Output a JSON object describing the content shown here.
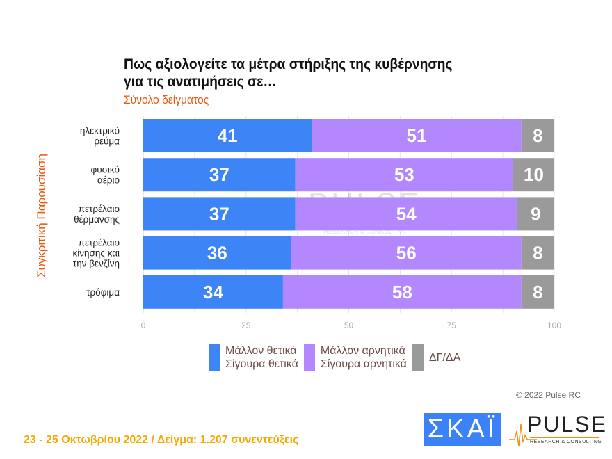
{
  "chart_data": {
    "type": "bar",
    "stacked": true,
    "orientation": "horizontal",
    "title": "Πως αξιολογείτε τα μέτρα στήριξης της κυβέρνησης για τις ανατιμήσεις σε…",
    "title_lines": [
      "Πως αξιολογείτε τα μέτρα στήριξης της κυβέρνησης",
      "για τις ανατιμήσεις σε…"
    ],
    "subtitle": "Σύνολο δείγματος",
    "ylabel": "Συγκριτική Παρουσίαση",
    "categories": [
      [
        "ηλεκτρικό",
        "ρεύμα"
      ],
      [
        "φυσικό",
        "αέριο"
      ],
      [
        "πετρέλαιο",
        "θέρμανσης"
      ],
      [
        "πετρέλαιο",
        "κίνησης και",
        "την βενζίνη"
      ],
      [
        "τρόφιμα"
      ]
    ],
    "series": [
      {
        "name": "Μάλλον θετικά / Σίγουρα θετικά",
        "legend_lines": [
          "Μάλλον θετικά",
          "Σίγουρα θετικά"
        ],
        "color": "#3d85f6",
        "values": [
          41,
          37,
          37,
          36,
          34
        ]
      },
      {
        "name": "Μάλλον αρνητικά / Σίγουρα αρνητικά",
        "legend_lines": [
          "Μάλλον αρνητικά",
          "Σίγουρα αρνητικά"
        ],
        "color": "#b388ff",
        "values": [
          51,
          53,
          54,
          56,
          58
        ]
      },
      {
        "name": "ΔΓ/ΔΑ",
        "legend_lines": [
          "ΔΓ/ΔΑ"
        ],
        "color": "#9a9a9a",
        "values": [
          8,
          10,
          9,
          8,
          8
        ]
      }
    ],
    "xlim": [
      0,
      100
    ],
    "xticks": [
      0,
      25,
      50,
      75,
      100
    ],
    "data_labels": true,
    "legend_position": "bottom"
  },
  "watermark": "PULSE RESEARCH & CONSULTING",
  "copyright": "© 2022 Pulse RC",
  "footer": "23 - 25  Οκτωβρίου  2022  /  Δείγμα:  1.207 συνεντεύξεις",
  "logos": {
    "skai": "ΣΚΑΪ",
    "pulse": "PULSE",
    "pulse_sub": "RESEARCH & CONSULTING"
  }
}
